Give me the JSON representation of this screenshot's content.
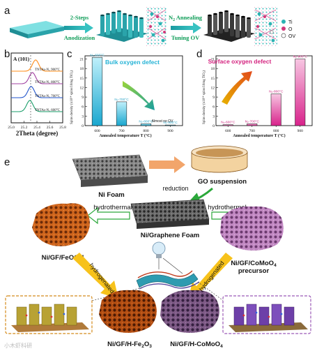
{
  "panels": {
    "a": {
      "label": "a",
      "step1_line1": "2-Steps",
      "step1_line2": "Anodization",
      "step2_line1": "N",
      "step2_sub": "2",
      "step2_rest": " Annealing",
      "step2_line2": "Tuning OV",
      "legend": [
        {
          "label": "Ti",
          "color": "#2bb3b3"
        },
        {
          "label": "O",
          "color": "#d2387a"
        },
        {
          "label": "OV",
          "color": "#ffffff"
        }
      ]
    },
    "b": {
      "label": "b",
      "peak_label": "A (101)",
      "traces": [
        {
          "label": "TNTAs-N₂ 900°C",
          "color": "#ff8c1a",
          "peak": 25.38
        },
        {
          "label": "TNTAs-N₂ 800°C",
          "color": "#a040a0",
          "peak": 25.33
        },
        {
          "label": "TNTAs-N₂ 700°C",
          "color": "#2255cc",
          "peak": 25.31
        },
        {
          "label": "TNTAs-N₂ 600°C",
          "color": "#1a9e6a",
          "peak": 25.29
        }
      ],
      "x_ticks": [
        "25.0",
        "25.2",
        "25.4",
        "25.6",
        "25.8"
      ],
      "xlabel": "2Theta (degree)"
    },
    "c": {
      "label": "c",
      "title": "Bulk oxygen defect",
      "ylabel": "Spins density (x10¹⁴ spins/10mg TiO₂)",
      "xlabel": "Annealed temperature T (°C)",
      "y_ticks": [
        "0",
        "3",
        "6",
        "9",
        "12",
        "15",
        "18",
        "21"
      ],
      "bar_labels": [
        "N₂-600°C",
        "N₂-700°C",
        "N₂-800°C",
        "N₂-900°C"
      ],
      "note": "Almost no OV"
    },
    "d": {
      "label": "d",
      "title": "Surface oxygen defect",
      "ylabel": "Spins density (x10¹⁴ spins/10mg TiO₂)",
      "xlabel": "Annealed temperature T (°C)",
      "y_ticks": [
        "0",
        "3",
        "6",
        "9",
        "12",
        "15",
        "18",
        "21"
      ],
      "bar_labels": [
        "N₂-600°C",
        "N₂-700°C",
        "N₂-800°C",
        "N₂-900°C"
      ]
    },
    "e": {
      "label": "e",
      "ni_foam": "Ni Foam",
      "go_suspension": "GO suspension",
      "reduction": "reduction",
      "hydrothermal_left": "hydrothermal",
      "hydrothermal_right": "hydrothermal",
      "center": "Ni/Graphene Foam",
      "left_product": "Ni/GF/FeOOH",
      "right_product_1": "Ni/GF/CoMoO",
      "right_product_sub": "4",
      "right_product_2": "precursor",
      "hydrogenated_left": "hydrogenated",
      "hydrogenated_right": "hydrogenated",
      "bottom_left_1": "Ni/GF/H-Fe",
      "bottom_left_sub1": "2",
      "bottom_left_2": "O",
      "bottom_left_sub2": "3",
      "bottom_right_1": "Ni/GF/H-CoMoO",
      "bottom_right_sub": "4",
      "watermark": "小木虾科研"
    }
  },
  "chart_data": [
    {
      "type": "line",
      "panel": "b",
      "xlabel": "2Theta (degree)",
      "xlim": [
        25.0,
        25.8
      ],
      "series": [
        {
          "name": "TNTAs-N₂ 900°C",
          "peak_x": 25.38
        },
        {
          "name": "TNTAs-N₂ 800°C",
          "peak_x": 25.33
        },
        {
          "name": "TNTAs-N₂ 700°C",
          "peak_x": 25.31
        },
        {
          "name": "TNTAs-N₂ 600°C",
          "peak_x": 25.29
        }
      ]
    },
    {
      "type": "bar",
      "panel": "c",
      "title": "Bulk oxygen defect",
      "categories": [
        "600",
        "700",
        "800",
        "900"
      ],
      "values": [
        21.5,
        7.5,
        0.6,
        0.2
      ],
      "ylim": [
        0,
        22
      ],
      "xlabel": "Annealed temperature T (°C)",
      "ylabel": "Spins density (x10¹⁴ spins/10mg TiO₂)"
    },
    {
      "type": "bar",
      "panel": "d",
      "title": "Surface oxygen defect",
      "categories": [
        "600",
        "700",
        "800",
        "900"
      ],
      "values": [
        0.3,
        0.6,
        10.0,
        21.0
      ],
      "ylim": [
        0,
        22
      ],
      "xlabel": "Annealed temperature T (°C)",
      "ylabel": "Spins density (x10¹⁴ spins/10mg TiO₂)"
    }
  ]
}
